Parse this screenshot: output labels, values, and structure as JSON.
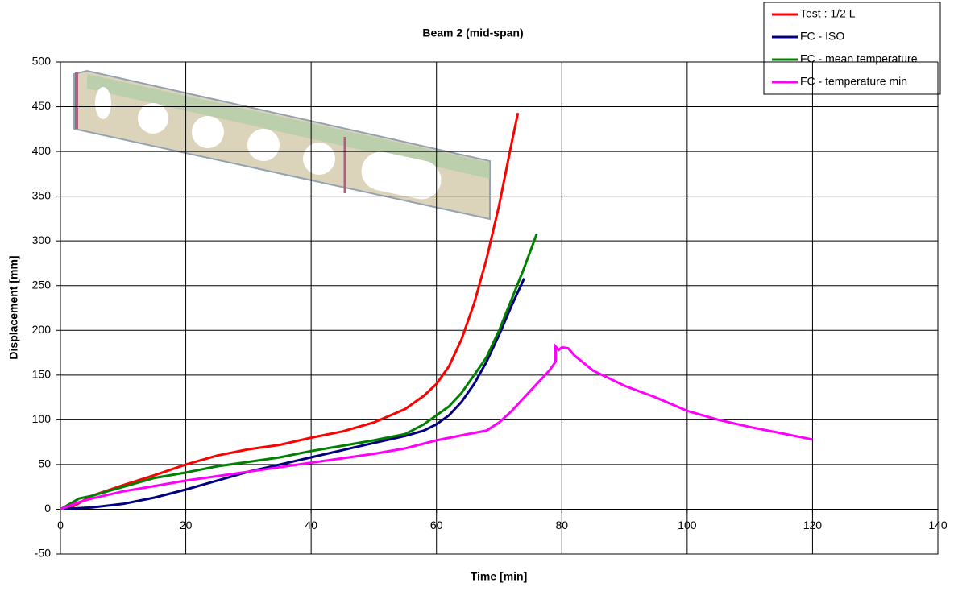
{
  "chart_data": {
    "type": "line",
    "title": "Beam 2 (mid-span)",
    "x_label": "Time [min]",
    "y_label": "Displacement [mm]",
    "xlim": [
      0,
      140
    ],
    "xticks": [
      0,
      20,
      40,
      60,
      80,
      100,
      120,
      140
    ],
    "ylim": [
      -50,
      500
    ],
    "yticks": [
      -50,
      0,
      50,
      100,
      150,
      200,
      250,
      300,
      350,
      400,
      450,
      500
    ],
    "grid": true,
    "legend": "top-right",
    "series": [
      {
        "name": "Test : 1/2 L",
        "color": "#ff0000",
        "x": [
          0,
          2,
          5,
          10,
          15,
          20,
          25,
          30,
          35,
          40,
          45,
          50,
          55,
          58,
          60,
          62,
          64,
          66,
          68,
          70,
          72,
          73
        ],
        "values": [
          0,
          3,
          15,
          27,
          38,
          50,
          60,
          67,
          72,
          80,
          87,
          97,
          112,
          127,
          140,
          160,
          190,
          230,
          280,
          340,
          410,
          443
        ]
      },
      {
        "name": "FC - ISO",
        "color": "#000080",
        "x": [
          0,
          5,
          10,
          15,
          20,
          25,
          30,
          35,
          40,
          45,
          50,
          55,
          58,
          60,
          62,
          64,
          66,
          68,
          70,
          72,
          74
        ],
        "values": [
          0,
          2,
          6,
          13,
          22,
          32,
          42,
          50,
          58,
          66,
          74,
          82,
          88,
          95,
          105,
          120,
          140,
          165,
          195,
          228,
          258
        ]
      },
      {
        "name": "FC - mean temperature",
        "color": "#008000",
        "x": [
          0,
          2,
          3,
          5,
          10,
          15,
          20,
          25,
          30,
          35,
          40,
          45,
          50,
          55,
          58,
          60,
          62,
          64,
          66,
          68,
          70,
          72,
          74,
          76
        ],
        "values": [
          0,
          8,
          12,
          15,
          25,
          35,
          41,
          48,
          53,
          58,
          65,
          71,
          77,
          84,
          95,
          105,
          115,
          130,
          150,
          170,
          200,
          235,
          270,
          308
        ]
      },
      {
        "name": "FC - temperature min",
        "color": "#ff00ff",
        "x": [
          0,
          3,
          5,
          10,
          15,
          20,
          25,
          30,
          35,
          40,
          45,
          50,
          55,
          60,
          65,
          68,
          70,
          72,
          74,
          76,
          78,
          79,
          79,
          79.5,
          80,
          81,
          82,
          85,
          90,
          95,
          100,
          105,
          110,
          115,
          120
        ],
        "values": [
          0,
          8,
          12,
          20,
          26,
          32,
          37,
          42,
          47,
          52,
          57,
          62,
          68,
          77,
          84,
          88,
          97,
          110,
          125,
          140,
          155,
          165,
          182,
          178,
          181,
          180,
          172,
          155,
          138,
          125,
          110,
          100,
          92,
          85,
          78
        ]
      }
    ]
  }
}
